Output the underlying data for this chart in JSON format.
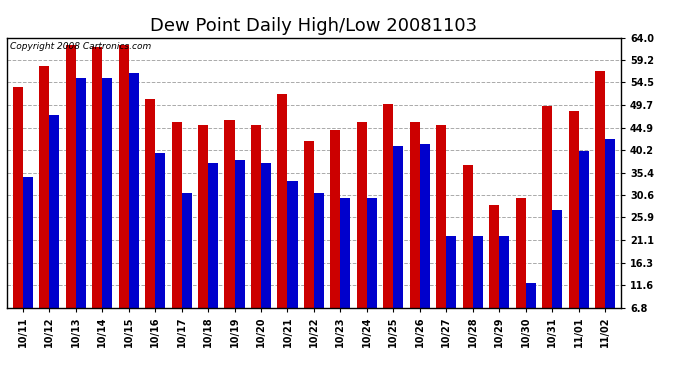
{
  "title": "Dew Point Daily High/Low 20081103",
  "copyright": "Copyright 2008 Cartronics.com",
  "categories": [
    "10/11",
    "10/12",
    "10/13",
    "10/14",
    "10/15",
    "10/16",
    "10/17",
    "10/18",
    "10/19",
    "10/20",
    "10/21",
    "10/22",
    "10/23",
    "10/24",
    "10/25",
    "10/26",
    "10/27",
    "10/28",
    "10/29",
    "10/30",
    "10/31",
    "11/01",
    "11/02"
  ],
  "highs": [
    53.5,
    58.0,
    62.5,
    62.0,
    62.5,
    51.0,
    46.0,
    45.5,
    46.5,
    45.5,
    52.0,
    42.0,
    44.5,
    46.0,
    50.0,
    46.0,
    45.5,
    37.0,
    28.5,
    30.0,
    49.5,
    48.5,
    57.0
  ],
  "lows": [
    34.5,
    47.5,
    55.5,
    55.5,
    56.5,
    39.5,
    31.0,
    37.5,
    38.0,
    37.5,
    33.5,
    31.0,
    30.0,
    30.0,
    41.0,
    41.5,
    22.0,
    22.0,
    22.0,
    12.0,
    27.5,
    40.0,
    42.5
  ],
  "high_color": "#cc0000",
  "low_color": "#0000cc",
  "bg_color": "#ffffff",
  "plot_bg_color": "#ffffff",
  "grid_color": "#aaaaaa",
  "yticks": [
    6.8,
    11.6,
    16.3,
    21.1,
    25.9,
    30.6,
    35.4,
    40.2,
    44.9,
    49.7,
    54.5,
    59.2,
    64.0
  ],
  "ymin": 6.8,
  "ymax": 64.0,
  "title_fontsize": 13,
  "tick_fontsize": 7,
  "copyright_fontsize": 6.5
}
